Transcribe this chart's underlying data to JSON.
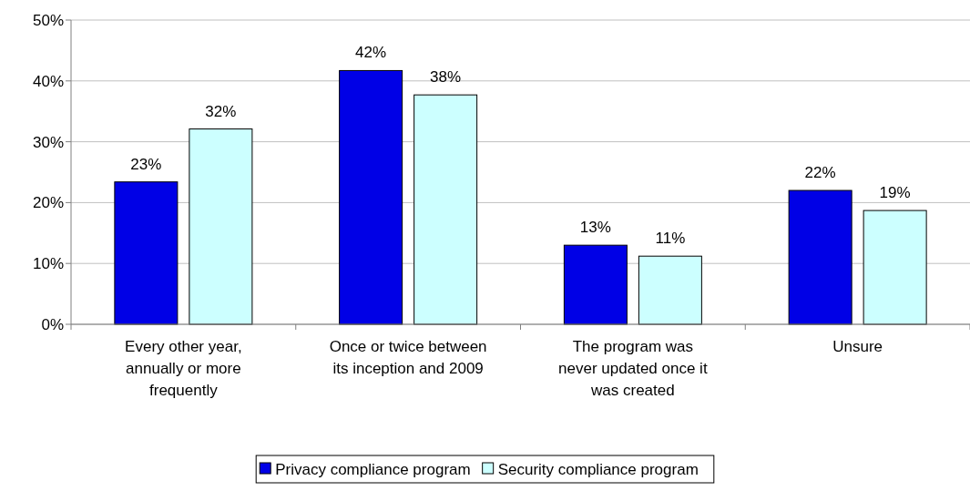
{
  "chart_data": {
    "type": "bar",
    "categories": [
      "Every other year, annually or more frequently",
      "Once or twice between its inception and 2009",
      "The program was never updated once it was created",
      "Unsure"
    ],
    "series": [
      {
        "name": "Privacy compliance program",
        "color": "#0000e6",
        "values": [
          23.4,
          41.7,
          13,
          22
        ],
        "value_labels": [
          "23%",
          "42%",
          "13%",
          "22%"
        ]
      },
      {
        "name": "Security compliance program",
        "color": "#ccffff",
        "values": [
          32.1,
          37.7,
          11.2,
          18.7
        ],
        "value_labels": [
          "32%",
          "38%",
          "11%",
          "19%"
        ]
      }
    ],
    "ylim": [
      0,
      50
    ],
    "yticks": [
      {
        "value": 0,
        "label": "0%"
      },
      {
        "value": 10,
        "label": "10%"
      },
      {
        "value": 20,
        "label": "20%"
      },
      {
        "value": 30,
        "label": "30%"
      },
      {
        "value": 40,
        "label": "40%"
      },
      {
        "value": 50,
        "label": "50%"
      }
    ],
    "grid": "y",
    "legend": "bottom"
  }
}
